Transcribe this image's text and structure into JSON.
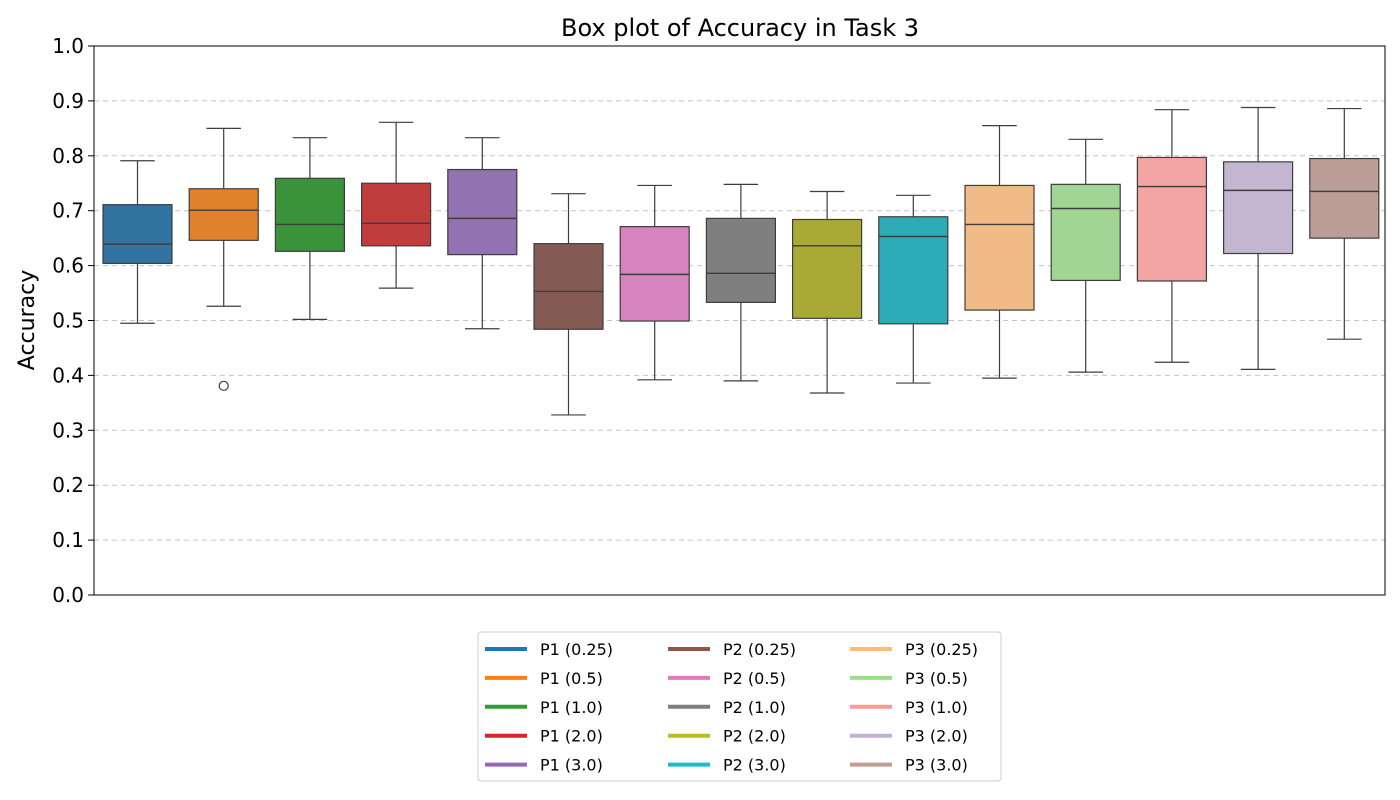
{
  "chart_data": {
    "type": "box",
    "title": "Box plot of Accuracy in Task 3",
    "xlabel": "",
    "ylabel": "Accuracy",
    "ylim": [
      0.0,
      1.0
    ],
    "yticks": [
      "0.0",
      "0.1",
      "0.2",
      "0.3",
      "0.4",
      "0.5",
      "0.6",
      "0.7",
      "0.8",
      "0.9",
      "1.0"
    ],
    "grid": "horizontal dashed",
    "legend_position": "bottom-center",
    "series": [
      {
        "name": "P1 (0.25)",
        "color": "#1f77b4",
        "box_color": "#3274a1",
        "whisker_low": 0.495,
        "q1": 0.604,
        "median": 0.639,
        "q3": 0.711,
        "whisker_high": 0.791,
        "outliers": []
      },
      {
        "name": "P1 (0.5)",
        "color": "#ff7f0e",
        "box_color": "#e1812c",
        "whisker_low": 0.526,
        "q1": 0.646,
        "median": 0.701,
        "q3": 0.74,
        "whisker_high": 0.85,
        "outliers": [
          0.381
        ]
      },
      {
        "name": "P1 (1.0)",
        "color": "#2ca02c",
        "box_color": "#3a923a",
        "whisker_low": 0.502,
        "q1": 0.626,
        "median": 0.675,
        "q3": 0.759,
        "whisker_high": 0.833,
        "outliers": []
      },
      {
        "name": "P1 (2.0)",
        "color": "#d62728",
        "box_color": "#c03d3e",
        "whisker_low": 0.559,
        "q1": 0.636,
        "median": 0.677,
        "q3": 0.75,
        "whisker_high": 0.861,
        "outliers": []
      },
      {
        "name": "P1 (3.0)",
        "color": "#9467bd",
        "box_color": "#9372b2",
        "whisker_low": 0.485,
        "q1": 0.62,
        "median": 0.686,
        "q3": 0.775,
        "whisker_high": 0.833,
        "outliers": []
      },
      {
        "name": "P2 (0.25)",
        "color": "#8c564b",
        "box_color": "#845b53",
        "whisker_low": 0.328,
        "q1": 0.484,
        "median": 0.553,
        "q3": 0.64,
        "whisker_high": 0.731,
        "outliers": []
      },
      {
        "name": "P2 (0.5)",
        "color": "#e377c2",
        "box_color": "#d684bd",
        "whisker_low": 0.392,
        "q1": 0.499,
        "median": 0.584,
        "q3": 0.671,
        "whisker_high": 0.746,
        "outliers": []
      },
      {
        "name": "P2 (1.0)",
        "color": "#7f7f7f",
        "box_color": "#7f7f7f",
        "whisker_low": 0.39,
        "q1": 0.533,
        "median": 0.586,
        "q3": 0.686,
        "whisker_high": 0.748,
        "outliers": []
      },
      {
        "name": "P2 (2.0)",
        "color": "#bcbd22",
        "box_color": "#a9aa35",
        "whisker_low": 0.368,
        "q1": 0.504,
        "median": 0.636,
        "q3": 0.684,
        "whisker_high": 0.735,
        "outliers": []
      },
      {
        "name": "P2 (3.0)",
        "color": "#17becf",
        "box_color": "#2eabb8",
        "whisker_low": 0.386,
        "q1": 0.494,
        "median": 0.653,
        "q3": 0.689,
        "whisker_high": 0.728,
        "outliers": []
      },
      {
        "name": "P3 (0.25)",
        "color": "#ffbb78",
        "box_color": "#f0bb87",
        "whisker_low": 0.395,
        "q1": 0.519,
        "median": 0.675,
        "q3": 0.746,
        "whisker_high": 0.855,
        "outliers": []
      },
      {
        "name": "P3 (0.5)",
        "color": "#98df8a",
        "box_color": "#a1d594",
        "whisker_low": 0.406,
        "q1": 0.573,
        "median": 0.704,
        "q3": 0.748,
        "whisker_high": 0.83,
        "outliers": []
      },
      {
        "name": "P3 (1.0)",
        "color": "#ff9896",
        "box_color": "#f3a5a4",
        "whisker_low": 0.424,
        "q1": 0.572,
        "median": 0.744,
        "q3": 0.797,
        "whisker_high": 0.884,
        "outliers": []
      },
      {
        "name": "P3 (2.0)",
        "color": "#c5b0d5",
        "box_color": "#c4b5d1",
        "whisker_low": 0.411,
        "q1": 0.622,
        "median": 0.737,
        "q3": 0.789,
        "whisker_high": 0.888,
        "outliers": []
      },
      {
        "name": "P3 (3.0)",
        "color": "#c49c94",
        "box_color": "#bc9e98",
        "whisker_low": 0.466,
        "q1": 0.65,
        "median": 0.735,
        "q3": 0.795,
        "whisker_high": 0.886,
        "outliers": []
      }
    ]
  }
}
